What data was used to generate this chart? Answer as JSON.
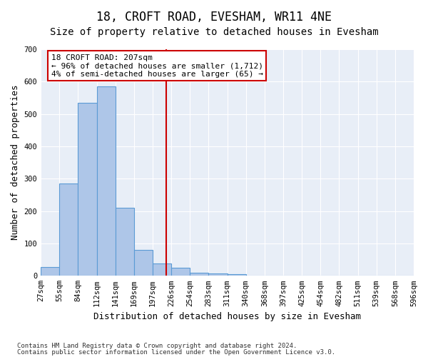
{
  "title": "18, CROFT ROAD, EVESHAM, WR11 4NE",
  "subtitle": "Size of property relative to detached houses in Evesham",
  "xlabel": "Distribution of detached houses by size in Evesham",
  "ylabel": "Number of detached properties",
  "bin_labels": [
    "27sqm",
    "55sqm",
    "84sqm",
    "112sqm",
    "141sqm",
    "169sqm",
    "197sqm",
    "226sqm",
    "254sqm",
    "283sqm",
    "311sqm",
    "340sqm",
    "368sqm",
    "397sqm",
    "425sqm",
    "454sqm",
    "482sqm",
    "511sqm",
    "539sqm",
    "568sqm",
    "596sqm"
  ],
  "bar_values": [
    27,
    285,
    535,
    585,
    210,
    80,
    38,
    25,
    10,
    8,
    5,
    0,
    0,
    0,
    0,
    0,
    0,
    0,
    0,
    0
  ],
  "bar_color": "#aec6e8",
  "bar_edge_color": "#5b9bd5",
  "vline_x": 6.72,
  "vline_color": "#cc0000",
  "annotation_text": "18 CROFT ROAD: 207sqm\n← 96% of detached houses are smaller (1,712)\n4% of semi-detached houses are larger (65) →",
  "annotation_box_color": "#ffffff",
  "annotation_box_edge": "#cc0000",
  "ylim": [
    0,
    700
  ],
  "yticks": [
    0,
    100,
    200,
    300,
    400,
    500,
    600,
    700
  ],
  "background_color": "#e8eef7",
  "footer_line1": "Contains HM Land Registry data © Crown copyright and database right 2024.",
  "footer_line2": "Contains public sector information licensed under the Open Government Licence v3.0.",
  "title_fontsize": 12,
  "subtitle_fontsize": 10,
  "tick_fontsize": 7.5,
  "ylabel_fontsize": 9,
  "xlabel_fontsize": 9
}
